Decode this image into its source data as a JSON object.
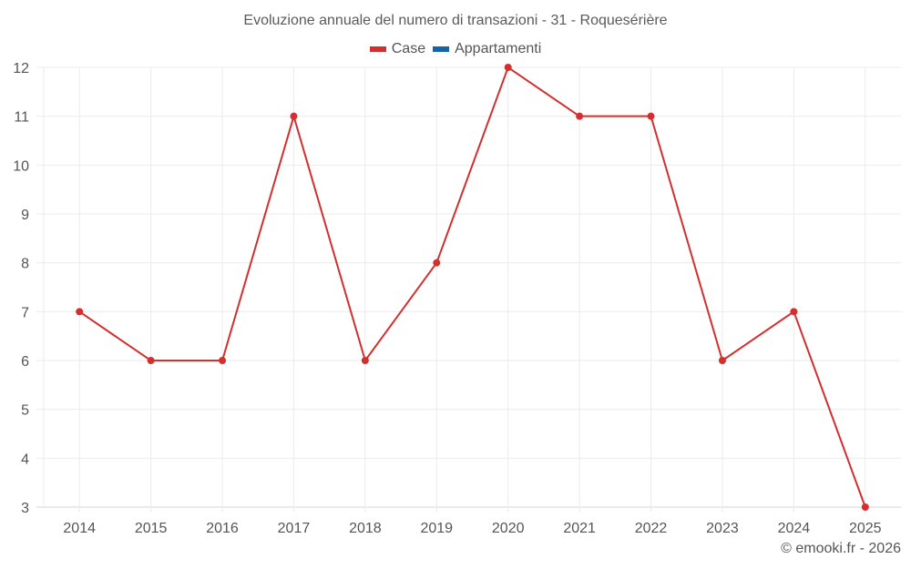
{
  "chart_data": {
    "type": "line",
    "title": "Evoluzione annuale del numero di transazioni - 31 - Roqueséričre",
    "categories": [
      "2014",
      "2015",
      "2016",
      "2017",
      "2018",
      "2019",
      "2020",
      "2021",
      "2022",
      "2023",
      "2024",
      "2025"
    ],
    "series": [
      {
        "name": "Case",
        "color": "#d32f2f",
        "values": [
          7,
          6,
          6,
          11,
          6,
          8,
          12,
          11,
          11,
          6,
          7,
          3
        ]
      },
      {
        "name": "Appartamenti",
        "color": "#1565a6",
        "values": []
      }
    ],
    "xlabel": "",
    "ylabel": "",
    "ylim": [
      3,
      12
    ],
    "yticks": [
      3,
      4,
      5,
      6,
      7,
      8,
      9,
      10,
      11,
      12
    ],
    "grid": true,
    "legend_position": "top"
  },
  "header": {
    "title": "Evoluzione annuale del numero di transazioni - 31 - Roquesérière"
  },
  "legend": {
    "items": [
      {
        "label": "Case",
        "color": "#d32f2f"
      },
      {
        "label": "Appartamenti",
        "color": "#1565a6"
      }
    ]
  },
  "footer": {
    "credit": "© emooki.fr - 2026"
  }
}
